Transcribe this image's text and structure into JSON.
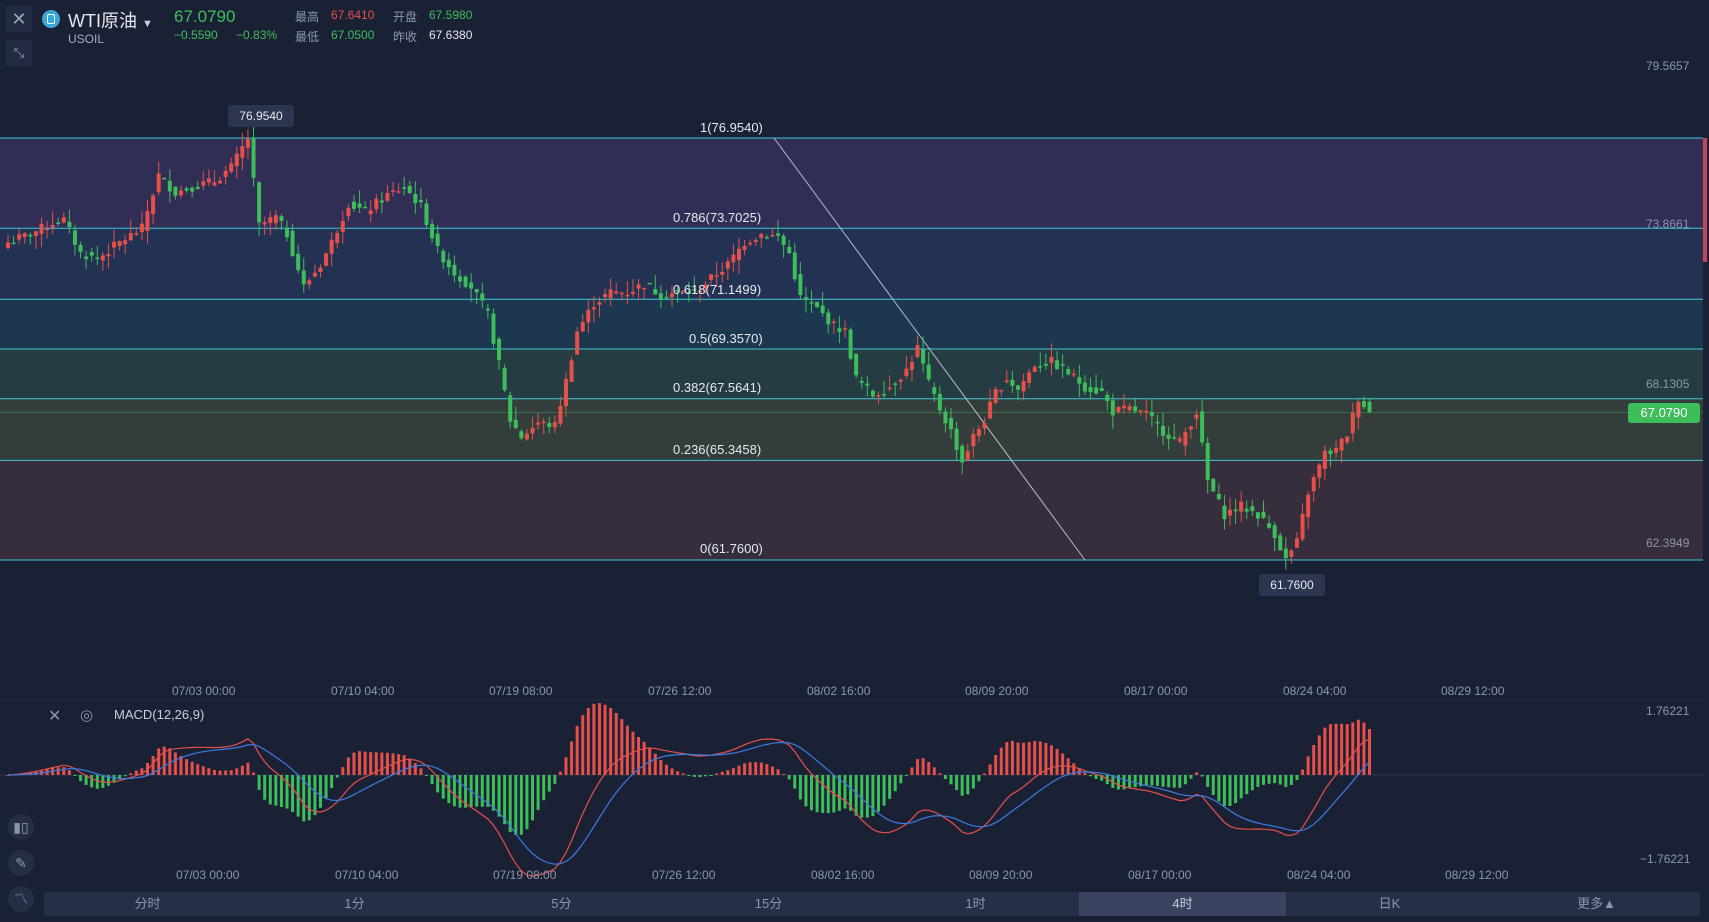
{
  "symbol": {
    "name": "WTI原油",
    "code": "USOIL",
    "price": "67.0790",
    "change": "−0.5590",
    "change_pct": "−0.83%",
    "high_label": "最高",
    "high": "67.6410",
    "open_label": "开盘",
    "open": "67.5980",
    "low_label": "最低",
    "low": "67.0500",
    "prev_close_label": "昨收",
    "prev_close": "67.6380"
  },
  "price_axis": {
    "ticks": [
      "79.5657",
      "73.8661",
      "68.1305",
      "62.3949"
    ],
    "current_price": "67.0790"
  },
  "fibonacci": {
    "levels": [
      {
        "label": "1(76.9540)",
        "value": 76.954
      },
      {
        "label": "0.786(73.7025)",
        "value": 73.7025
      },
      {
        "label": "0.618(71.1499)",
        "value": 71.1499
      },
      {
        "label": "0.5(69.3570)",
        "value": 69.357
      },
      {
        "label": "0.382(67.5641)",
        "value": 67.5641
      },
      {
        "label": "0.236(65.3458)",
        "value": 65.3458
      },
      {
        "label": "0(61.7600)",
        "value": 61.76
      }
    ],
    "high_tag": "76.9540",
    "low_tag": "61.7600"
  },
  "time_axis": [
    "07/03 00:00",
    "07/10 04:00",
    "07/19 08:00",
    "07/26 12:00",
    "08/02 16:00",
    "08/09 20:00",
    "08/17 00:00",
    "08/24 04:00",
    "08/29 12:00"
  ],
  "macd": {
    "title": "MACD(12,26,9)",
    "ticks": [
      "1.76221",
      "−1.76221"
    ]
  },
  "tabs": [
    "分时",
    "1分",
    "5分",
    "15分",
    "1时",
    "4时",
    "日K",
    "更多▲"
  ],
  "active_tab": "4时",
  "colors": {
    "up": "#e5504b",
    "down": "#3ebd5b",
    "fib_line": "#3fc7d9",
    "dif": "#e5504b",
    "dea": "#3b7be0"
  },
  "chart_data": {
    "type": "candlestick",
    "timeframe": "4时",
    "ylim": [
      59.9,
      81.0
    ],
    "close_path": [
      [
        0,
        73.2
      ],
      [
        4,
        73.5
      ],
      [
        8,
        73.9
      ],
      [
        10,
        74.0
      ],
      [
        13,
        72.8
      ],
      [
        16,
        72.6
      ],
      [
        20,
        73.2
      ],
      [
        24,
        73.7
      ],
      [
        27,
        75.6
      ],
      [
        30,
        75.0
      ],
      [
        33,
        75.2
      ],
      [
        37,
        75.4
      ],
      [
        40,
        75.9
      ],
      [
        43,
        76.95
      ],
      [
        45,
        73.8
      ],
      [
        48,
        74.1
      ],
      [
        50,
        73.5
      ],
      [
        53,
        71.6
      ],
      [
        56,
        72.4
      ],
      [
        58,
        73.2
      ],
      [
        61,
        74.6
      ],
      [
        64,
        74.3
      ],
      [
        68,
        74.9
      ],
      [
        71,
        75.2
      ],
      [
        74,
        74.5
      ],
      [
        77,
        72.9
      ],
      [
        80,
        72.1
      ],
      [
        83,
        71.6
      ],
      [
        86,
        70.6
      ],
      [
        88,
        68.8
      ],
      [
        90,
        66.8
      ],
      [
        92,
        66.2
      ],
      [
        95,
        66.7
      ],
      [
        98,
        66.6
      ],
      [
        100,
        68.2
      ],
      [
        102,
        70.0
      ],
      [
        105,
        71.0
      ],
      [
        108,
        71.4
      ],
      [
        111,
        71.4
      ],
      [
        114,
        71.7
      ],
      [
        117,
        71.3
      ],
      [
        120,
        71.4
      ],
      [
        123,
        71.4
      ],
      [
        126,
        71.9
      ],
      [
        129,
        72.4
      ],
      [
        132,
        73.2
      ],
      [
        135,
        73.5
      ],
      [
        138,
        73.4
      ],
      [
        140,
        72.8
      ],
      [
        142,
        71.2
      ],
      [
        145,
        70.8
      ],
      [
        148,
        70.2
      ],
      [
        150,
        70.0
      ],
      [
        152,
        68.3
      ],
      [
        155,
        67.7
      ],
      [
        158,
        68.0
      ],
      [
        161,
        68.6
      ],
      [
        163,
        69.4
      ],
      [
        165,
        68.1
      ],
      [
        167,
        67.2
      ],
      [
        169,
        66.4
      ],
      [
        171,
        65.3
      ],
      [
        173,
        66.2
      ],
      [
        175,
        66.8
      ],
      [
        177,
        67.8
      ],
      [
        179,
        68.3
      ],
      [
        181,
        67.9
      ],
      [
        184,
        68.8
      ],
      [
        187,
        68.9
      ],
      [
        190,
        68.5
      ],
      [
        193,
        68.0
      ],
      [
        196,
        67.8
      ],
      [
        198,
        67.1
      ],
      [
        201,
        67.2
      ],
      [
        204,
        67.0
      ],
      [
        207,
        66.4
      ],
      [
        210,
        66.0
      ],
      [
        213,
        67.1
      ],
      [
        215,
        64.6
      ],
      [
        218,
        63.4
      ],
      [
        221,
        63.7
      ],
      [
        224,
        63.4
      ],
      [
        227,
        62.7
      ],
      [
        229,
        61.76
      ],
      [
        231,
        62.4
      ],
      [
        233,
        64.2
      ],
      [
        236,
        65.6
      ],
      [
        238,
        65.7
      ],
      [
        240,
        66.3
      ],
      [
        242,
        67.6
      ],
      [
        244,
        67.08
      ]
    ]
  }
}
